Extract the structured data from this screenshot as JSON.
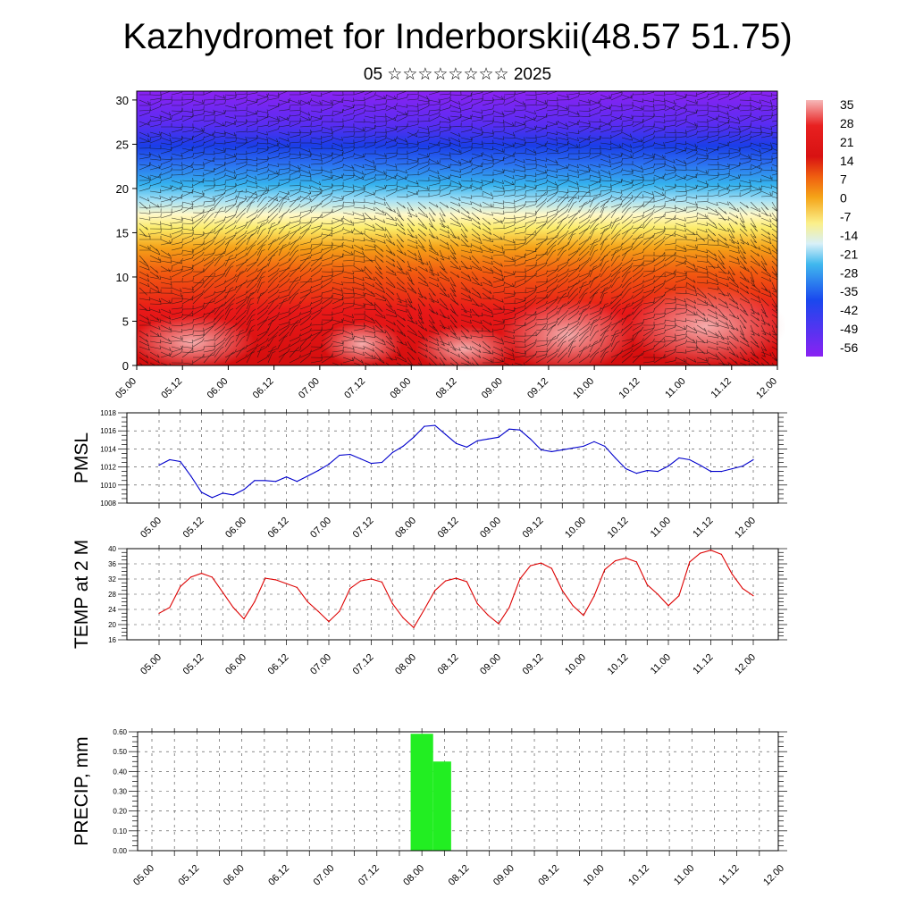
{
  "title": "Kazhydromet for Inderborskii(48.57 51.75)",
  "subtitle": "05 ☆☆☆☆☆☆☆☆ 2025",
  "chart_data": [
    {
      "type": "heatmap",
      "name": "vertical-section",
      "x_ticks": [
        "05.00",
        "05.12",
        "06.00",
        "06.12",
        "07.00",
        "07.12",
        "08.00",
        "08.12",
        "09.00",
        "09.12",
        "10.00",
        "10.12",
        "11.00",
        "11.12",
        "12.00"
      ],
      "y_ticks": [
        0,
        5,
        10,
        15,
        20,
        25,
        30
      ],
      "ylim": [
        0,
        31
      ],
      "colorbar": {
        "labels": [
          "35",
          "28",
          "21",
          "14",
          "7",
          "0",
          "-7",
          "-14",
          "-21",
          "-28",
          "-35",
          "-42",
          "-49",
          "-56"
        ],
        "range": [
          -60,
          38
        ]
      },
      "colors": {
        "warm_light": "#f4aaaa",
        "warm": "#e81010",
        "orange": "#f59a10",
        "yellow": "#fbeb68",
        "light_blue": "#8fd6f3",
        "blue": "#1a55ee",
        "violet": "#8020f0"
      }
    },
    {
      "type": "line",
      "name": "pmsl",
      "ylabel": "PMSL",
      "ylim": [
        1008,
        1018
      ],
      "y_ticks": [
        "1008",
        "1010",
        "1012",
        "1014",
        "1016",
        "1018"
      ],
      "x_ticks": [
        "05.00",
        "05.12",
        "06.00",
        "06.12",
        "07.00",
        "07.12",
        "08.00",
        "08.12",
        "09.00",
        "09.12",
        "10.00",
        "10.12",
        "11.00",
        "11.12",
        "12.00"
      ],
      "x": [
        0,
        1,
        2,
        3,
        4,
        5,
        6,
        7,
        8,
        9,
        10,
        11,
        12,
        13,
        14,
        15,
        16,
        17,
        18,
        19,
        20,
        21,
        22,
        23,
        24,
        25,
        26,
        27,
        28,
        29,
        30,
        31,
        32,
        33,
        34,
        35,
        36,
        37,
        38,
        39,
        40,
        41,
        42,
        43,
        44,
        45,
        46,
        47,
        48,
        49,
        50,
        51,
        52,
        53,
        54,
        55,
        56
      ],
      "values": [
        1012.2,
        1012.8,
        1012.6,
        1011.0,
        1009.2,
        1008.6,
        1009.1,
        1008.9,
        1009.5,
        1010.5,
        1010.5,
        1010.4,
        1010.9,
        1010.4,
        1011.0,
        1011.6,
        1012.3,
        1013.3,
        1013.4,
        1012.9,
        1012.4,
        1012.5,
        1013.6,
        1014.3,
        1015.3,
        1016.5,
        1016.6,
        1015.6,
        1014.6,
        1014.2,
        1014.9,
        1015.1,
        1015.3,
        1016.2,
        1016.1,
        1015.1,
        1013.9,
        1013.7,
        1013.9,
        1014.1,
        1014.3,
        1014.8,
        1014.3,
        1013.0,
        1011.8,
        1011.3,
        1011.6,
        1011.5,
        1012.1,
        1013.0,
        1012.8,
        1012.2,
        1011.5,
        1011.5,
        1011.8,
        1012.1,
        1012.8
      ],
      "color": "#0000cc"
    },
    {
      "type": "line",
      "name": "temp2m",
      "ylabel": "TEMP at 2 M",
      "ylim": [
        16,
        40
      ],
      "y_ticks": [
        "16",
        "20",
        "24",
        "28",
        "32",
        "36",
        "40"
      ],
      "x_ticks": [
        "05.00",
        "05.12",
        "06.00",
        "06.12",
        "07.00",
        "07.12",
        "08.00",
        "08.12",
        "09.00",
        "09.12",
        "10.00",
        "10.12",
        "11.00",
        "11.12",
        "12.00"
      ],
      "x": [
        0,
        1,
        2,
        3,
        4,
        5,
        6,
        7,
        8,
        9,
        10,
        11,
        12,
        13,
        14,
        15,
        16,
        17,
        18,
        19,
        20,
        21,
        22,
        23,
        24,
        25,
        26,
        27,
        28,
        29,
        30,
        31,
        32,
        33,
        34,
        35,
        36,
        37,
        38,
        39,
        40,
        41,
        42,
        43,
        44,
        45,
        46,
        47,
        48,
        49,
        50,
        51,
        52,
        53,
        54,
        55,
        56
      ],
      "values": [
        23.0,
        24.5,
        30.0,
        32.5,
        33.5,
        32.5,
        28.5,
        24.5,
        21.5,
        26.0,
        32.2,
        31.8,
        30.8,
        29.8,
        26.0,
        23.5,
        20.8,
        23.5,
        29.5,
        31.5,
        32.0,
        31.2,
        25.5,
        21.8,
        19.2,
        24.0,
        29.0,
        31.5,
        32.2,
        31.3,
        25.5,
        22.5,
        20.2,
        24.5,
        32.0,
        35.5,
        36.2,
        34.8,
        29.0,
        25.0,
        22.4,
        27.5,
        34.5,
        36.8,
        37.5,
        36.5,
        30.5,
        28.0,
        25.0,
        27.6,
        36.5,
        38.8,
        39.6,
        38.5,
        33.3,
        29.5,
        27.6
      ],
      "color": "#dd0000"
    },
    {
      "type": "bar",
      "name": "precip",
      "ylabel": "PRECIP, mm",
      "ylim": [
        0,
        0.6
      ],
      "y_ticks": [
        "0.00",
        "0.10",
        "0.20",
        "0.30",
        "0.40",
        "0.50",
        "0.60"
      ],
      "x_ticks": [
        "05.00",
        "05.12",
        "06.00",
        "06.12",
        "07.00",
        "07.12",
        "08.00",
        "08.12",
        "09.00",
        "09.12",
        "10.00",
        "10.12",
        "11.00",
        "11.12",
        "12.00"
      ],
      "bars": [
        {
          "x_start": 11.5,
          "x_end": 12.5,
          "value": 0.59
        },
        {
          "x_start": 12.5,
          "x_end": 13.3,
          "value": 0.45
        }
      ],
      "color": "#22ee22"
    }
  ]
}
